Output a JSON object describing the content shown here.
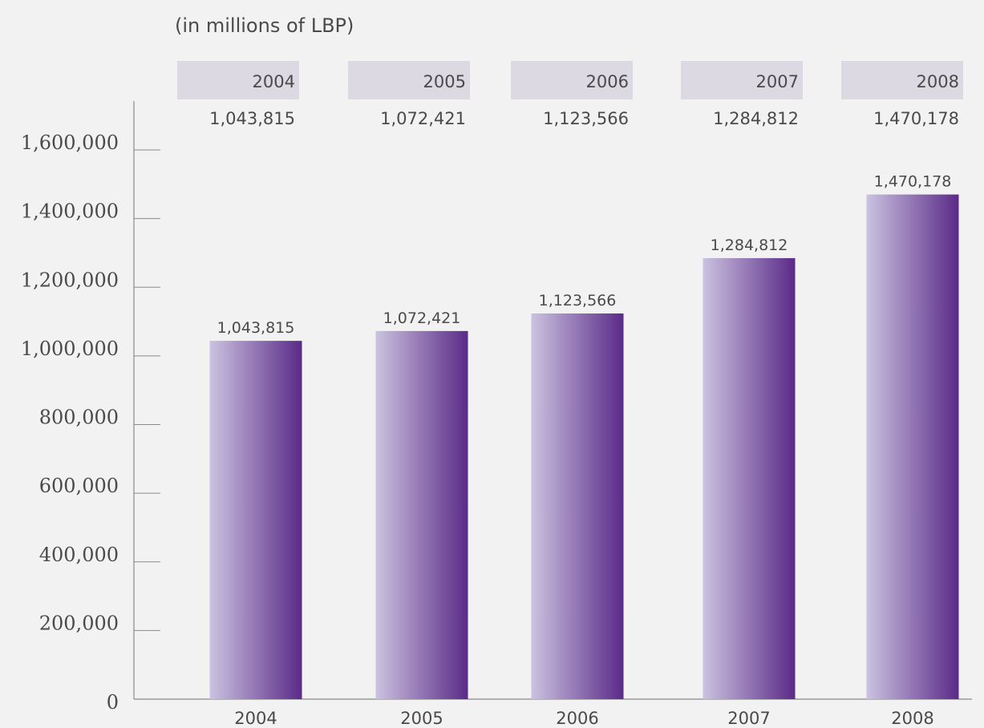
{
  "unit_note": "(in millions of LBP)",
  "colors": {
    "background": "#f2f2f2",
    "header_box": "#dcd9e2",
    "bar_light": "#cbc2e0",
    "bar_dark": "#5a2a88",
    "axis": "#8a8a8a",
    "text": "#4a4a4a"
  },
  "chart_data": {
    "type": "bar",
    "categories": [
      "2004",
      "2005",
      "2006",
      "2007",
      "2008"
    ],
    "values": [
      1043815,
      1072421,
      1123566,
      1284812,
      1470178
    ],
    "value_labels": [
      "1,043,815",
      "1,072,421",
      "1,123,566",
      "1,284,812",
      "1,470,178"
    ],
    "yticks": [
      0,
      200000,
      400000,
      600000,
      800000,
      1000000,
      1200000,
      1400000,
      1600000
    ],
    "ytick_labels": [
      "0",
      "200,000",
      "400,000",
      "600,000",
      "800,000",
      "1,000,000",
      "1,200,000",
      "1,400,000",
      "1,600,000"
    ],
    "ylim": [
      0,
      1600000
    ],
    "grid": false,
    "header_table": {
      "years": [
        "2004",
        "2005",
        "2006",
        "2007",
        "2008"
      ],
      "values": [
        "1,043,815",
        "1,072,421",
        "1,123,566",
        "1,284,812",
        "1,470,178"
      ]
    }
  }
}
